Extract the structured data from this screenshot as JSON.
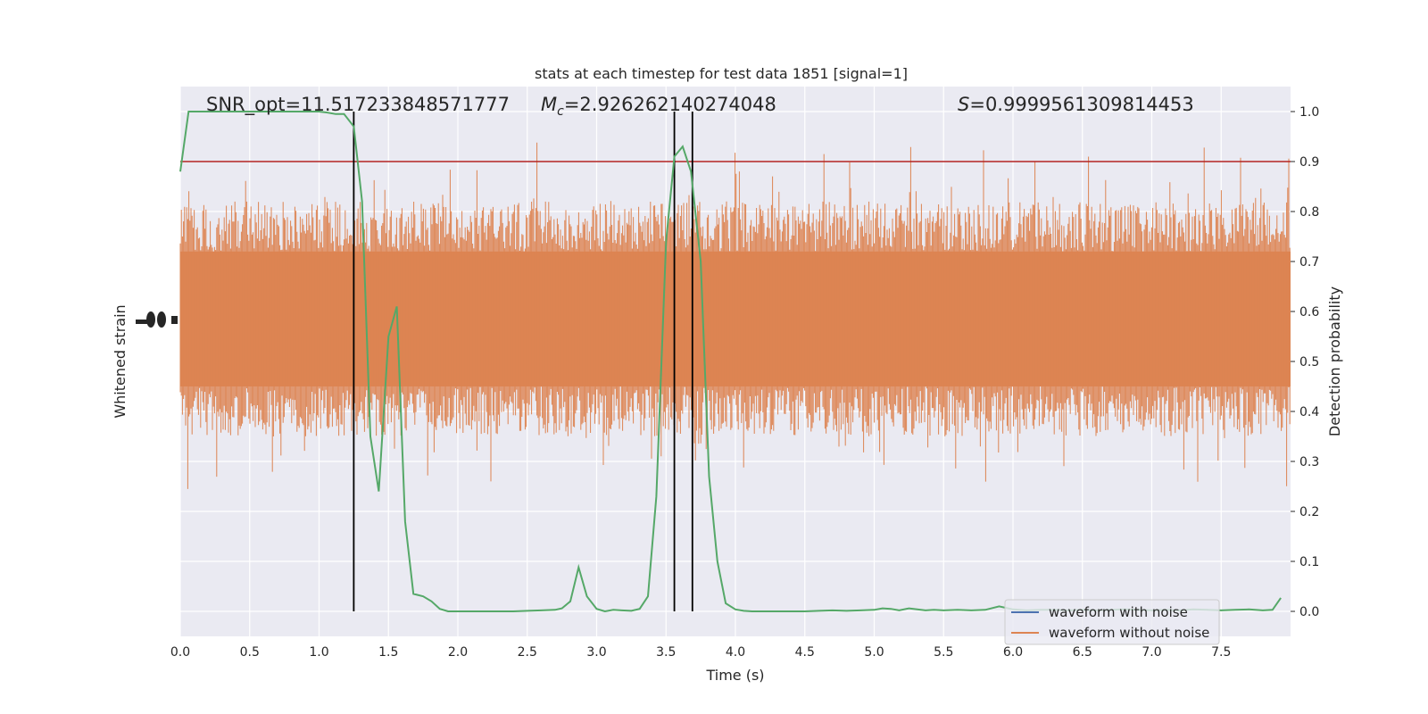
{
  "chart_data": {
    "type": "line",
    "title": "stats at each timestep for test data 1851 [signal=1]",
    "xlabel": "Time (s)",
    "ylabel_left": "Whitened strain",
    "ylabel_right": "Detection probability",
    "xlim": [
      0.0,
      8.0
    ],
    "right_ylim": [
      -0.05,
      1.05
    ],
    "x_ticks": [
      "0.0",
      "0.5",
      "1.0",
      "1.5",
      "2.0",
      "2.5",
      "3.0",
      "3.5",
      "4.0",
      "4.5",
      "5.0",
      "5.5",
      "6.0",
      "6.5",
      "7.0",
      "7.5"
    ],
    "right_y_ticks": [
      "0.0",
      "0.1",
      "0.2",
      "0.3",
      "0.4",
      "0.5",
      "0.6",
      "0.7",
      "0.8",
      "0.9",
      "1.0"
    ],
    "grid": true,
    "legend_position": "lower-right",
    "annotations": {
      "snr": "SNR_opt=11.517233848571777",
      "mc_symbol": "M",
      "mc_sub": "c",
      "mc_value": "=2.926262140274048",
      "s_symbol": "S",
      "s_value": "=0.9999561309814453"
    },
    "series": [
      {
        "name": "waveform with noise",
        "color": "#4c72b0",
        "role": "legend only"
      },
      {
        "name": "waveform without noise",
        "color": "#dd8452",
        "role": "strain band, approx. 0.4–0.8 of probability scale with spikes 0.19–0.98"
      },
      {
        "color": "#55a868",
        "axis": "right",
        "x": [
          0.0,
          0.06,
          0.12,
          0.2,
          0.3,
          0.4,
          0.5,
          0.6,
          0.7,
          0.8,
          0.9,
          1.0,
          1.06,
          1.12,
          1.18,
          1.25,
          1.31,
          1.37,
          1.43,
          1.5,
          1.56,
          1.62,
          1.68,
          1.75,
          1.81,
          1.87,
          1.93,
          2.0,
          2.1,
          2.2,
          2.3,
          2.4,
          2.5,
          2.6,
          2.7,
          2.75,
          2.81,
          2.87,
          2.93,
          3.0,
          3.06,
          3.12,
          3.18,
          3.25,
          3.31,
          3.37,
          3.43,
          3.5,
          3.56,
          3.62,
          3.68,
          3.75,
          3.81,
          3.87,
          3.93,
          4.0,
          4.06,
          4.12,
          4.2,
          4.3,
          4.4,
          4.5,
          4.6,
          4.7,
          4.8,
          4.9,
          5.0,
          5.06,
          5.12,
          5.18,
          5.25,
          5.31,
          5.37,
          5.43,
          5.5,
          5.6,
          5.7,
          5.8,
          5.9,
          6.0,
          6.1,
          6.2,
          6.3,
          6.4,
          6.5,
          6.6,
          6.7,
          6.8,
          6.9,
          7.0,
          7.1,
          7.2,
          7.3,
          7.4,
          7.5,
          7.6,
          7.7,
          7.8,
          7.87,
          7.93
        ],
        "y": [
          0.88,
          1.0,
          1.0,
          1.0,
          1.0,
          1.0,
          1.0,
          1.0,
          1.0,
          1.0,
          1.0,
          1.0,
          0.998,
          0.995,
          0.995,
          0.97,
          0.82,
          0.35,
          0.24,
          0.55,
          0.61,
          0.18,
          0.035,
          0.03,
          0.02,
          0.005,
          0.0,
          0.0,
          0.0,
          0.0,
          0.0,
          0.0,
          0.001,
          0.002,
          0.003,
          0.006,
          0.02,
          0.088,
          0.03,
          0.005,
          0.0,
          0.003,
          0.002,
          0.001,
          0.005,
          0.03,
          0.23,
          0.74,
          0.91,
          0.93,
          0.88,
          0.7,
          0.27,
          0.1,
          0.016,
          0.004,
          0.001,
          0.0,
          0.0,
          0.0,
          0.0,
          0.0,
          0.001,
          0.002,
          0.001,
          0.002,
          0.003,
          0.006,
          0.005,
          0.002,
          0.006,
          0.004,
          0.002,
          0.003,
          0.002,
          0.003,
          0.002,
          0.003,
          0.01,
          0.004,
          0.002,
          0.003,
          0.003,
          0.002,
          0.003,
          0.002,
          0.003,
          0.004,
          0.003,
          0.002,
          0.003,
          0.002,
          0.004,
          0.003,
          0.002,
          0.003,
          0.004,
          0.002,
          0.003,
          0.027
        ]
      }
    ],
    "threshold_line": {
      "y": 0.9,
      "color": "#b22222"
    },
    "vertical_lines_x": [
      1.25,
      3.56,
      3.69
    ]
  }
}
